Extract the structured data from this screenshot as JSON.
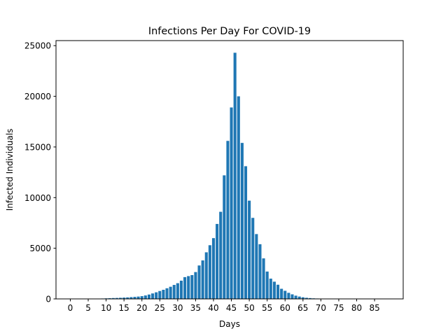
{
  "chart_data": {
    "type": "bar",
    "title": "Infections Per Day For COVID-19",
    "xlabel": "Days",
    "ylabel": "Infected Individuals",
    "x_start": 0,
    "values": [
      0,
      0,
      0,
      0,
      0,
      0,
      0,
      0,
      0,
      40,
      55,
      70,
      85,
      95,
      110,
      130,
      150,
      175,
      200,
      230,
      270,
      340,
      430,
      540,
      650,
      780,
      900,
      1050,
      1200,
      1380,
      1550,
      1800,
      2150,
      2250,
      2350,
      2650,
      3300,
      3800,
      4600,
      5300,
      6000,
      7400,
      8600,
      12200,
      15600,
      18900,
      24300,
      20000,
      15400,
      13100,
      9700,
      8000,
      6400,
      5400,
      4000,
      2700,
      2000,
      1700,
      1400,
      1000,
      800,
      600,
      450,
      320,
      230,
      160,
      110,
      80,
      55,
      40,
      28,
      20,
      14,
      10,
      7,
      5,
      3,
      2,
      1,
      1,
      1,
      0,
      0,
      0,
      0,
      0,
      0,
      0,
      0
    ],
    "xlim": [
      -4,
      93
    ],
    "ylim": [
      0,
      25500
    ],
    "xticks": [
      0,
      5,
      10,
      15,
      20,
      25,
      30,
      35,
      40,
      45,
      50,
      55,
      60,
      65,
      70,
      75,
      80,
      85
    ],
    "yticks": [
      0,
      5000,
      10000,
      15000,
      20000,
      25000
    ],
    "bar_color": "#1f77b4",
    "grid": false,
    "legend": "none"
  }
}
